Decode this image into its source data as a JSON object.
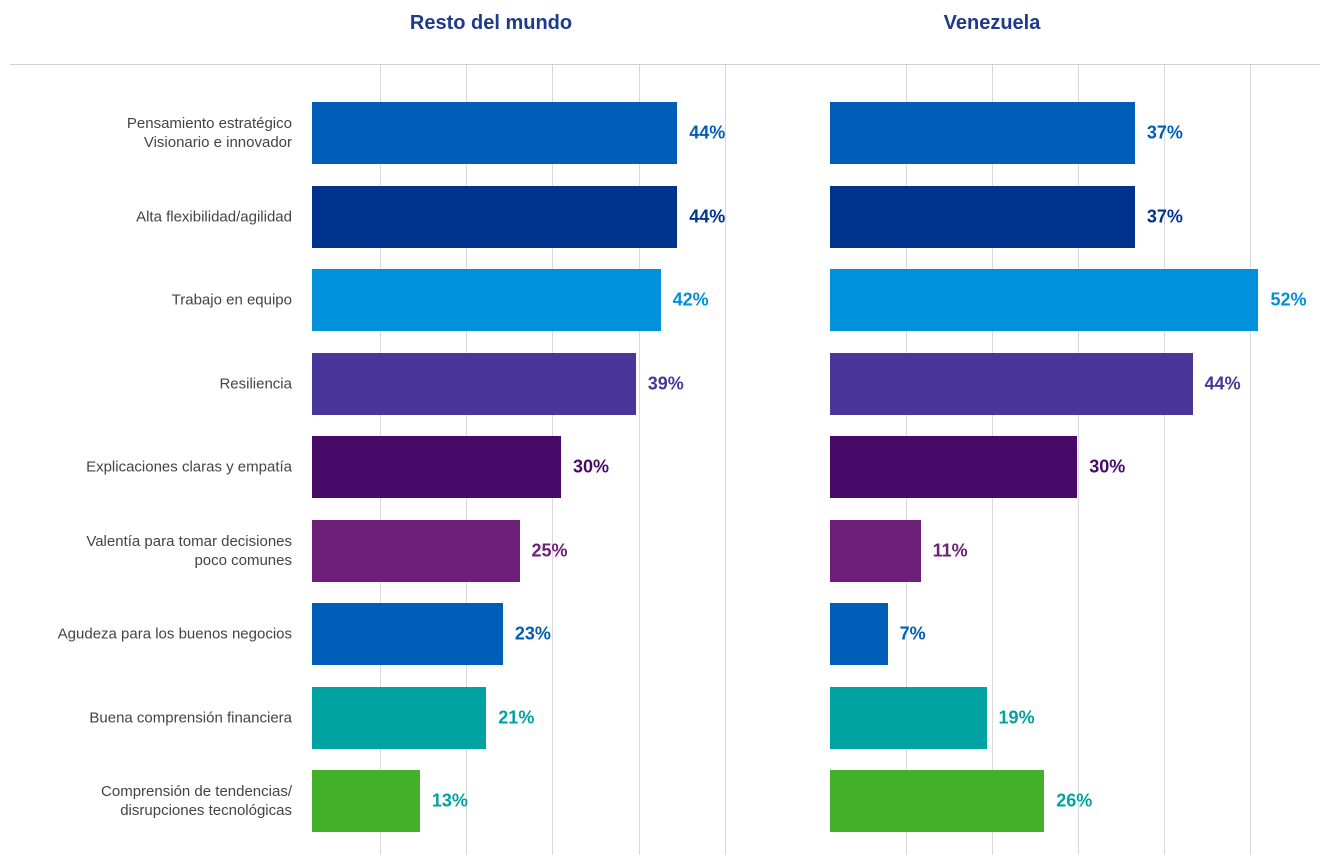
{
  "chart_data": [
    {
      "type": "bar",
      "orientation": "horizontal",
      "title": "Resto del mundo",
      "categories": [
        "Pensamiento estratégico\nVisionario e innovador",
        "Alta flexibilidad/agilidad",
        "Trabajo en equipo",
        "Resiliencia",
        "Explicaciones claras y empatía",
        "Valentía para tomar decisiones\npoco comunes",
        "Agudeza para los buenos negocios",
        "Buena comprensión financiera",
        "Comprensión de tendencias/\ndisrupciones tecnológicas"
      ],
      "values": [
        44,
        44,
        42,
        39,
        30,
        25,
        23,
        21,
        13
      ],
      "value_labels": [
        "44%",
        "44%",
        "42%",
        "39%",
        "30%",
        "25%",
        "23%",
        "21%",
        "13%"
      ],
      "colors": [
        "#005eb8",
        "#00338d",
        "#0091da",
        "#483698",
        "#470a68",
        "#6d2077",
        "#005eb8",
        "#00a3a1",
        "#43b02a"
      ],
      "label_colors": [
        "#005eb8",
        "#00338d",
        "#0091da",
        "#483698",
        "#470a68",
        "#6d2077",
        "#005eb8",
        "#00a3a1",
        "#00a3a1"
      ],
      "xlim": [
        0,
        55
      ]
    },
    {
      "type": "bar",
      "orientation": "horizontal",
      "title": "Venezuela",
      "values": [
        37,
        37,
        52,
        44,
        30,
        11,
        7,
        19,
        26
      ],
      "value_labels": [
        "37%",
        "37%",
        "52%",
        "44%",
        "30%",
        "11%",
        "7%",
        "19%",
        "26%"
      ],
      "colors": [
        "#005eb8",
        "#00338d",
        "#0091da",
        "#483698",
        "#470a68",
        "#6d2077",
        "#005eb8",
        "#00a3a1",
        "#43b02a"
      ],
      "label_colors": [
        "#005eb8",
        "#00338d",
        "#0091da",
        "#483698",
        "#470a68",
        "#6d2077",
        "#005eb8",
        "#00a3a1",
        "#00a3a1"
      ],
      "xlim": [
        0,
        55
      ]
    }
  ]
}
